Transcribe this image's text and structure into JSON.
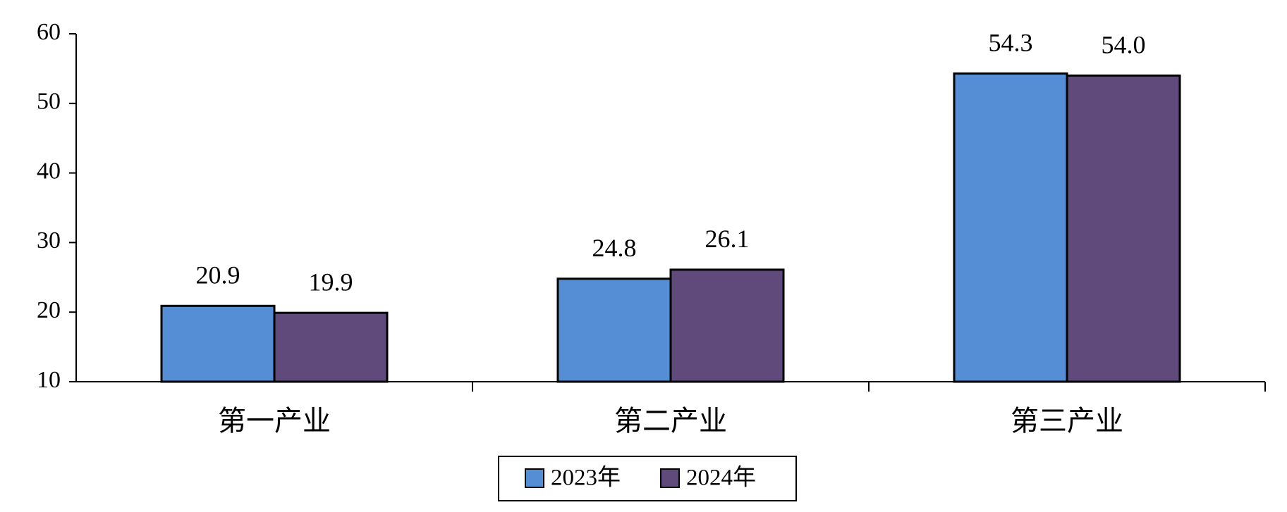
{
  "chart_data": {
    "type": "bar",
    "categories": [
      "第一产业",
      "第二产业",
      "第三产业"
    ],
    "series": [
      {
        "name": "2023年",
        "color": "#558ed5",
        "values": [
          20.9,
          24.8,
          54.3
        ]
      },
      {
        "name": "2024年",
        "color": "#604a7b",
        "values": [
          19.9,
          26.1,
          54.0
        ],
        "value_labels": [
          "19.9",
          "26.1",
          "54.0"
        ]
      }
    ],
    "ylim": [
      10,
      60
    ],
    "yticks": [
      10,
      20,
      30,
      40,
      50,
      60
    ],
    "grid": false,
    "legend": "bottom"
  }
}
